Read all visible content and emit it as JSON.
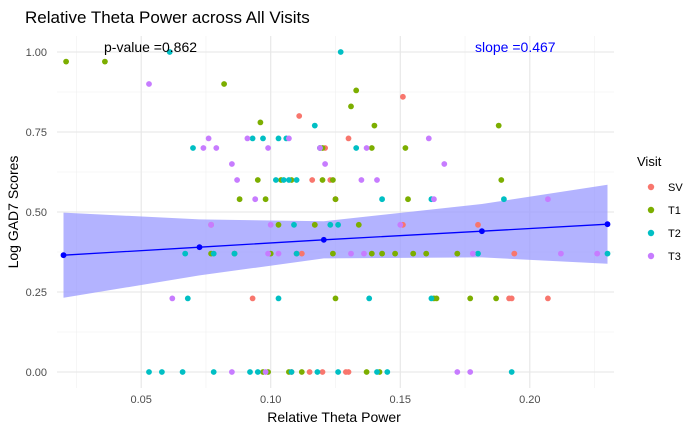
{
  "chart_data": {
    "type": "scatter",
    "title": "Relative Theta Power across All Visits",
    "xlabel": "Relative Theta Power",
    "ylabel": "Log GAD7 Scores",
    "xlim": [
      0.0175,
      0.2325
    ],
    "ylim": [
      -0.05,
      1.05
    ],
    "x_ticks": [
      0.05,
      0.1,
      0.15,
      0.2
    ],
    "x_tick_labels": [
      "0.05",
      "0.10",
      "0.15",
      "0.20"
    ],
    "y_ticks": [
      0.0,
      0.25,
      0.5,
      0.75,
      1.0
    ],
    "y_tick_labels": [
      "0.00",
      "0.25",
      "0.50",
      "0.75",
      "1.00"
    ],
    "grid": true,
    "legend": {
      "title": "Visit",
      "position": "right"
    },
    "annotations": {
      "p_value": "p-value =0.862",
      "slope": "slope =0.467"
    },
    "colors": {
      "SV": "#F8766D",
      "T1": "#7CAE00",
      "T2": "#00BFC4",
      "T3": "#C77CFF",
      "fit_line": "#0000ff",
      "ribbon": "#9999ff"
    },
    "series": [
      {
        "name": "SV",
        "points": [
          [
            0.093,
            0.23
          ],
          [
            0.111,
            0.8
          ],
          [
            0.119,
            0.7
          ],
          [
            0.121,
            0.7
          ],
          [
            0.123,
            0.6
          ],
          [
            0.125,
            0.54
          ],
          [
            0.13,
            0.73
          ],
          [
            0.117,
            0.46
          ],
          [
            0.151,
            0.86
          ],
          [
            0.151,
            0.46
          ],
          [
            0.18,
            0.46
          ],
          [
            0.192,
            0.23
          ],
          [
            0.193,
            0.23
          ],
          [
            0.207,
            0.23
          ],
          [
            0.194,
            0.37
          ],
          [
            0.11,
            0.37
          ],
          [
            0.112,
            0.37
          ],
          [
            0.108,
            0.0
          ],
          [
            0.115,
            0.0
          ],
          [
            0.129,
            0.0
          ],
          [
            0.13,
            0.0
          ],
          [
            0.12,
            0.0
          ],
          [
            0.116,
            0.6
          ],
          [
            0.077,
            0.46
          ]
        ]
      },
      {
        "name": "T1",
        "points": [
          [
            0.021,
            0.97
          ],
          [
            0.036,
            0.97
          ],
          [
            0.082,
            0.9
          ],
          [
            0.096,
            0.78
          ],
          [
            0.131,
            0.83
          ],
          [
            0.133,
            0.88
          ],
          [
            0.14,
            0.77
          ],
          [
            0.152,
            0.7
          ],
          [
            0.188,
            0.77
          ],
          [
            0.077,
            0.37
          ],
          [
            0.086,
            0.37
          ],
          [
            0.1,
            0.37
          ],
          [
            0.117,
            0.46
          ],
          [
            0.12,
            0.7
          ],
          [
            0.124,
            0.6
          ],
          [
            0.12,
            0.6
          ],
          [
            0.104,
            0.6
          ],
          [
            0.095,
            0.6
          ],
          [
            0.088,
            0.54
          ],
          [
            0.098,
            0.54
          ],
          [
            0.103,
            0.46
          ],
          [
            0.125,
            0.54
          ],
          [
            0.134,
            0.46
          ],
          [
            0.139,
            0.37
          ],
          [
            0.143,
            0.37
          ],
          [
            0.148,
            0.37
          ],
          [
            0.153,
            0.54
          ],
          [
            0.155,
            0.37
          ],
          [
            0.16,
            0.37
          ],
          [
            0.163,
            0.23
          ],
          [
            0.164,
            0.23
          ],
          [
            0.172,
            0.37
          ],
          [
            0.177,
            0.23
          ],
          [
            0.187,
            0.23
          ],
          [
            0.189,
            0.6
          ],
          [
            0.137,
            0.0
          ],
          [
            0.142,
            0.0
          ],
          [
            0.097,
            0.0
          ],
          [
            0.099,
            0.0
          ],
          [
            0.107,
            0.0
          ],
          [
            0.112,
            0.0
          ],
          [
            0.125,
            0.23
          ],
          [
            0.139,
            0.7
          ],
          [
            0.108,
            0.6
          ],
          [
            0.124,
            0.37
          ]
        ]
      },
      {
        "name": "T2",
        "points": [
          [
            0.061,
            1.0
          ],
          [
            0.127,
            1.0
          ],
          [
            0.07,
            0.7
          ],
          [
            0.093,
            0.73
          ],
          [
            0.097,
            0.73
          ],
          [
            0.103,
            0.73
          ],
          [
            0.106,
            0.73
          ],
          [
            0.117,
            0.77
          ],
          [
            0.119,
            0.7
          ],
          [
            0.133,
            0.7
          ],
          [
            0.102,
            0.6
          ],
          [
            0.105,
            0.6
          ],
          [
            0.107,
            0.6
          ],
          [
            0.11,
            0.6
          ],
          [
            0.109,
            0.46
          ],
          [
            0.123,
            0.46
          ],
          [
            0.126,
            0.46
          ],
          [
            0.143,
            0.54
          ],
          [
            0.162,
            0.54
          ],
          [
            0.19,
            0.54
          ],
          [
            0.078,
            0.37
          ],
          [
            0.067,
            0.37
          ],
          [
            0.086,
            0.37
          ],
          [
            0.11,
            0.37
          ],
          [
            0.068,
            0.23
          ],
          [
            0.103,
            0.23
          ],
          [
            0.138,
            0.23
          ],
          [
            0.162,
            0.23
          ],
          [
            0.053,
            0.0
          ],
          [
            0.058,
            0.0
          ],
          [
            0.066,
            0.0
          ],
          [
            0.078,
            0.0
          ],
          [
            0.092,
            0.0
          ],
          [
            0.095,
            0.0
          ],
          [
            0.108,
            0.0
          ],
          [
            0.118,
            0.0
          ],
          [
            0.126,
            0.0
          ],
          [
            0.141,
            0.0
          ],
          [
            0.145,
            0.0
          ],
          [
            0.193,
            0.0
          ],
          [
            0.18,
            0.37
          ],
          [
            0.23,
            0.37
          ]
        ]
      },
      {
        "name": "T3",
        "points": [
          [
            0.053,
            0.9
          ],
          [
            0.076,
            0.73
          ],
          [
            0.074,
            0.7
          ],
          [
            0.079,
            0.7
          ],
          [
            0.085,
            0.65
          ],
          [
            0.087,
            0.6
          ],
          [
            0.091,
            0.73
          ],
          [
            0.094,
            0.54
          ],
          [
            0.099,
            0.7
          ],
          [
            0.107,
            0.73
          ],
          [
            0.119,
            0.7
          ],
          [
            0.121,
            0.65
          ],
          [
            0.135,
            0.6
          ],
          [
            0.137,
            0.7
          ],
          [
            0.141,
            0.6
          ],
          [
            0.15,
            0.46
          ],
          [
            0.161,
            0.73
          ],
          [
            0.163,
            0.54
          ],
          [
            0.167,
            0.65
          ],
          [
            0.207,
            0.54
          ],
          [
            0.1,
            0.46
          ],
          [
            0.077,
            0.46
          ],
          [
            0.099,
            0.37
          ],
          [
            0.103,
            0.37
          ],
          [
            0.131,
            0.37
          ],
          [
            0.136,
            0.37
          ],
          [
            0.178,
            0.37
          ],
          [
            0.226,
            0.37
          ],
          [
            0.212,
            0.37
          ],
          [
            0.062,
            0.23
          ],
          [
            0.085,
            0.0
          ],
          [
            0.098,
            0.0
          ],
          [
            0.172,
            0.0
          ],
          [
            0.177,
            0.0
          ]
        ]
      }
    ],
    "fit": {
      "points": [
        [
          0.02,
          0.365
        ],
        [
          0.0725,
          0.39
        ],
        [
          0.1205,
          0.413
        ],
        [
          0.1815,
          0.44
        ],
        [
          0.23,
          0.462
        ]
      ],
      "band": {
        "x": [
          0.02,
          0.0725,
          0.1205,
          0.1815,
          0.23
        ],
        "lower": [
          0.232,
          0.302,
          0.355,
          0.358,
          0.338
        ],
        "upper": [
          0.498,
          0.477,
          0.471,
          0.525,
          0.585
        ]
      }
    }
  }
}
